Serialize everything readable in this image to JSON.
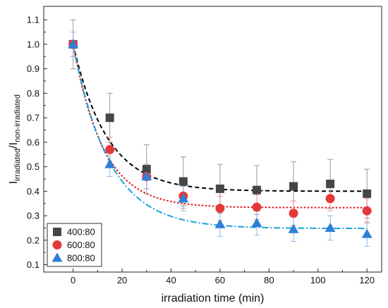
{
  "chart_data": {
    "type": "scatter",
    "title": "",
    "xlabel": "irradiation time (min)",
    "ylabel": {
      "main": "I",
      "sub1": "irradiated",
      "sep": "/I",
      "sub2": "non-irradiated"
    },
    "xlim": [
      -12,
      126
    ],
    "ylim": [
      0.07,
      1.155
    ],
    "x_ticks": [
      0,
      20,
      40,
      60,
      80,
      100,
      120
    ],
    "y_ticks": [
      0.1,
      0.2,
      0.3,
      0.4,
      0.5,
      0.6,
      0.7,
      0.8,
      0.9,
      1.0,
      1.1
    ],
    "y_tick_labels": [
      "0.1",
      "0.2",
      "0.3",
      "0.4",
      "0.5",
      "0.6",
      "0.7",
      "0.8",
      "0.9",
      "1.0",
      "1.1"
    ],
    "grid": false,
    "legend_position": "bottom-left",
    "series": [
      {
        "name": "400:80",
        "marker": "square",
        "color": "#464646",
        "fit_color": "#000000",
        "fit_dash": "dashed",
        "fit": {
          "a": 0.4,
          "b": 0.6,
          "k": 0.072
        },
        "points": [
          {
            "x": 0,
            "y": 1.0,
            "err": 0.1
          },
          {
            "x": 15,
            "y": 0.7,
            "err": 0.1
          },
          {
            "x": 30,
            "y": 0.49,
            "err": 0.1
          },
          {
            "x": 45,
            "y": 0.44,
            "err": 0.1
          },
          {
            "x": 60,
            "y": 0.41,
            "err": 0.1
          },
          {
            "x": 75,
            "y": 0.405,
            "err": 0.1
          },
          {
            "x": 90,
            "y": 0.42,
            "err": 0.1
          },
          {
            "x": 105,
            "y": 0.43,
            "err": 0.1
          },
          {
            "x": 120,
            "y": 0.39,
            "err": 0.1
          }
        ]
      },
      {
        "name": "600:80",
        "marker": "circle",
        "color": "#e23a3a",
        "fit_color": "#e01010",
        "fit_dash": "dotted",
        "fit": {
          "a": 0.333,
          "b": 0.667,
          "k": 0.082
        },
        "points": [
          {
            "x": 0,
            "y": 1.0,
            "err": 0.05
          },
          {
            "x": 15,
            "y": 0.57,
            "err": 0.05
          },
          {
            "x": 30,
            "y": 0.46,
            "err": 0.05
          },
          {
            "x": 45,
            "y": 0.38,
            "err": 0.05
          },
          {
            "x": 60,
            "y": 0.33,
            "err": 0.05
          },
          {
            "x": 75,
            "y": 0.335,
            "err": 0.05
          },
          {
            "x": 90,
            "y": 0.31,
            "err": 0.05
          },
          {
            "x": 105,
            "y": 0.37,
            "err": 0.05
          },
          {
            "x": 120,
            "y": 0.32,
            "err": 0.05
          }
        ]
      },
      {
        "name": "800:80",
        "marker": "triangle",
        "color": "#2f7fd8",
        "fit_color": "#1aa0dd",
        "fit_dash": "dashdot",
        "fit": {
          "a": 0.248,
          "b": 0.752,
          "k": 0.068
        },
        "points": [
          {
            "x": 0,
            "y": 1.0,
            "err": 0.05
          },
          {
            "x": 15,
            "y": 0.51,
            "err": 0.05
          },
          {
            "x": 30,
            "y": 0.46,
            "err": 0.05
          },
          {
            "x": 45,
            "y": 0.37,
            "err": 0.05
          },
          {
            "x": 60,
            "y": 0.265,
            "err": 0.05
          },
          {
            "x": 75,
            "y": 0.27,
            "err": 0.05
          },
          {
            "x": 90,
            "y": 0.245,
            "err": 0.05
          },
          {
            "x": 105,
            "y": 0.25,
            "err": 0.05
          },
          {
            "x": 120,
            "y": 0.225,
            "err": 0.05
          }
        ]
      }
    ]
  }
}
